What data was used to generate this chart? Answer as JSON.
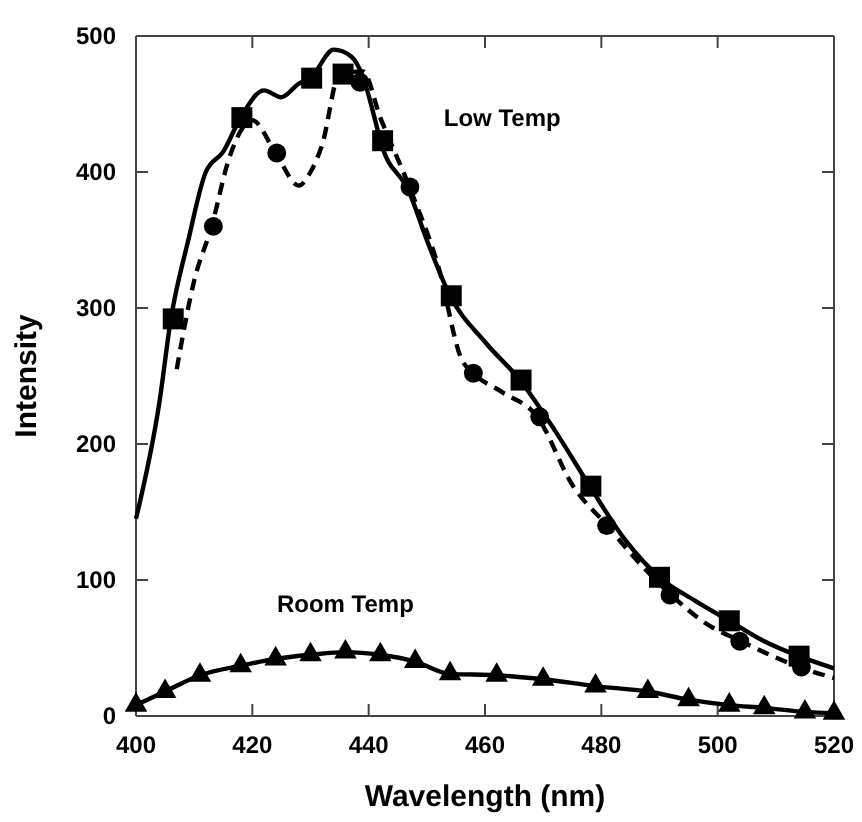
{
  "chart_data": {
    "type": "line",
    "xlabel": "Wavelength (nm)",
    "ylabel": "Intensity",
    "xlim": [
      400,
      520
    ],
    "ylim": [
      0,
      500
    ],
    "xticks": [
      400,
      420,
      440,
      460,
      480,
      500,
      520
    ],
    "yticks": [
      0,
      100,
      200,
      300,
      400,
      500
    ],
    "grid": false,
    "series": [
      {
        "name": "Low Temp",
        "color": "#000000",
        "line_style": "solid",
        "marker": "none",
        "x": [
          400,
          404,
          406,
          409,
          412,
          415,
          418,
          422,
          425,
          428,
          430,
          434,
          437,
          439,
          441,
          442,
          447,
          450,
          454,
          460,
          466,
          472,
          478,
          484,
          490,
          496,
          502,
          508,
          514,
          520
        ],
        "values": [
          145,
          230,
          292,
          350,
          400,
          415,
          440,
          460,
          455,
          465,
          469,
          490,
          485,
          470,
          440,
          423,
          385,
          350,
          309,
          275,
          247,
          210,
          169,
          130,
          102,
          85,
          70,
          55,
          44,
          35
        ]
      },
      {
        "type": "scatter",
        "color": "#000000",
        "marker": "square",
        "x": [
          406.4,
          418.2,
          430.2,
          435.6,
          442.4,
          454.2,
          466.2,
          478.2,
          490,
          502,
          514
        ],
        "values": [
          292,
          440,
          469,
          472,
          423,
          309,
          247,
          169,
          102,
          70,
          44
        ]
      },
      {
        "color": "#000000",
        "line_style": "dashed",
        "marker": "none",
        "x": [
          407,
          410,
          413,
          416,
          420,
          424,
          428,
          430,
          432,
          435,
          439,
          442,
          447,
          452,
          456,
          458,
          463,
          469,
          475,
          481,
          486,
          492,
          498,
          504,
          510,
          514,
          520
        ],
        "values": [
          255,
          320,
          360,
          410,
          438,
          414,
          390,
          400,
          420,
          472,
          474,
          440,
          389,
          330,
          262,
          252,
          238,
          220,
          170,
          140,
          115,
          89,
          68,
          55,
          43,
          36,
          28
        ]
      },
      {
        "type": "scatter",
        "color": "#000000",
        "marker": "circle",
        "x": [
          413.3,
          424.2,
          438.5,
          447.1,
          458,
          469.4,
          480.9,
          491.8,
          503.8,
          514.4
        ],
        "values": [
          360,
          414,
          466,
          389,
          252,
          220,
          140,
          89,
          55,
          36
        ]
      },
      {
        "name": "Room Temp",
        "color": "#000000",
        "line_style": "solid",
        "marker": "triangle",
        "x": [
          400,
          405,
          411,
          418,
          424,
          430,
          436,
          442,
          448,
          454,
          462,
          470,
          479,
          488,
          495,
          502,
          508,
          515,
          520
        ],
        "values": [
          8,
          18,
          30,
          37,
          42,
          45,
          47,
          45,
          40,
          31,
          30,
          27,
          22,
          18,
          12,
          8,
          6,
          3,
          2
        ]
      }
    ]
  }
}
